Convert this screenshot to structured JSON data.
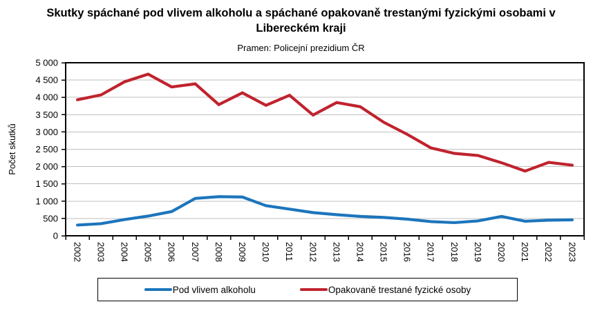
{
  "chart_data": {
    "type": "line",
    "title": "Skutky spáchané pod vlivem alkoholu a spáchané opakovaně trestanými fyzickými osobami v Libereckém kraji",
    "subtitle": "Pramen: Policejní prezidium ČR",
    "xlabel": "",
    "ylabel": "Počet skutků",
    "ylim": [
      0,
      5000
    ],
    "ytick_step": 500,
    "ytick_labels": [
      "0",
      "500",
      "1 000",
      "1 500",
      "2 000",
      "2 500",
      "3 000",
      "3 500",
      "4 000",
      "4 500",
      "5 000"
    ],
    "grid": true,
    "legend_position": "bottom",
    "categories": [
      "2002",
      "2003",
      "2004",
      "2005",
      "2006",
      "2007",
      "2008",
      "2009",
      "2010",
      "2011",
      "2012",
      "2013",
      "2014",
      "2015",
      "2016",
      "2017",
      "2018",
      "2019",
      "2020",
      "2021",
      "2022",
      "2023"
    ],
    "series": [
      {
        "name": "Pod vlivem alkoholu",
        "color": "#1C75BC",
        "values": [
          310,
          350,
          470,
          570,
          700,
          1080,
          1130,
          1120,
          870,
          770,
          670,
          610,
          560,
          530,
          480,
          410,
          380,
          430,
          560,
          420,
          450,
          460
        ]
      },
      {
        "name": "Opakovaně trestané fyzické osoby",
        "color": "#C0232E",
        "values": [
          3930,
          4070,
          4450,
          4670,
          4300,
          4390,
          3790,
          4130,
          3770,
          4060,
          3490,
          3850,
          3730,
          3280,
          2930,
          2540,
          2380,
          2320,
          2110,
          1870,
          2120,
          2040
        ]
      }
    ]
  },
  "colors": {
    "grid": "#BFBFBF",
    "axis": "#000000",
    "background": "#FFFFFF"
  }
}
